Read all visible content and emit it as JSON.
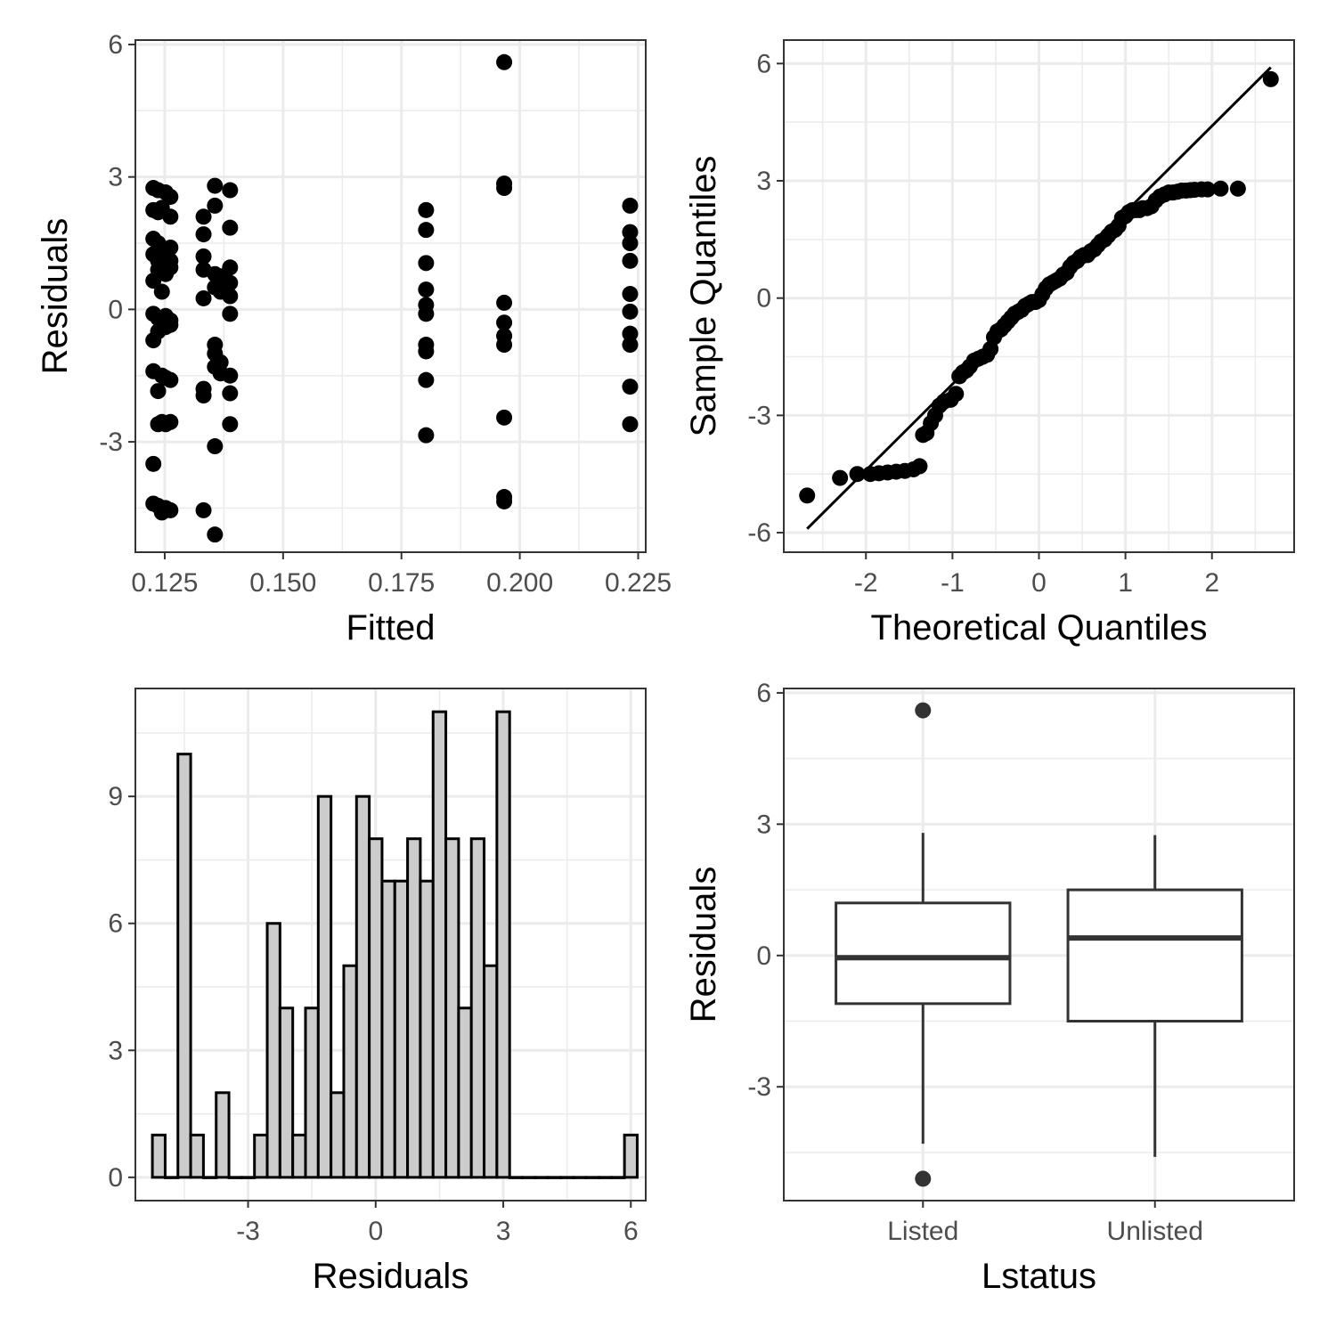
{
  "chart_data": [
    {
      "id": "residuals-vs-fitted",
      "type": "scatter",
      "xlabel": "Fitted",
      "ylabel": "Residuals",
      "xlim": [
        0.1188,
        0.2266
      ],
      "ylim": [
        -5.5,
        6.1
      ],
      "xticks": [
        0.125,
        0.15,
        0.175,
        0.2,
        0.225
      ],
      "xtick_labels": [
        "0.125",
        "0.150",
        "0.175",
        "0.200",
        "0.225"
      ],
      "yticks": [
        -3,
        0,
        3,
        6
      ],
      "ytick_labels": [
        "-3",
        "0",
        "3",
        "6"
      ],
      "grid": true,
      "points": [
        [
          0.1226,
          2.75
        ],
        [
          0.1226,
          2.25
        ],
        [
          0.1226,
          1.6
        ],
        [
          0.1226,
          1.25
        ],
        [
          0.1226,
          0.65
        ],
        [
          0.1226,
          -0.1
        ],
        [
          0.1226,
          -0.7
        ],
        [
          0.1226,
          -1.4
        ],
        [
          0.1226,
          -3.5
        ],
        [
          0.1226,
          -4.4
        ],
        [
          0.1236,
          2.7
        ],
        [
          0.1236,
          2.2
        ],
        [
          0.1236,
          1.5
        ],
        [
          0.1236,
          1.1
        ],
        [
          0.1236,
          0.9
        ],
        [
          0.1236,
          -0.2
        ],
        [
          0.1236,
          -0.5
        ],
        [
          0.1236,
          -1.85
        ],
        [
          0.1236,
          -2.6
        ],
        [
          0.1236,
          -4.45
        ],
        [
          0.1244,
          2.3
        ],
        [
          0.1244,
          1.35
        ],
        [
          0.1244,
          1.0
        ],
        [
          0.1244,
          0.4
        ],
        [
          0.1244,
          -0.3
        ],
        [
          0.1244,
          -1.5
        ],
        [
          0.1244,
          -2.55
        ],
        [
          0.1244,
          -4.6
        ],
        [
          0.1252,
          2.65
        ],
        [
          0.1252,
          1.2
        ],
        [
          0.1252,
          0.8
        ],
        [
          0.1252,
          -0.15
        ],
        [
          0.1252,
          -0.4
        ],
        [
          0.1252,
          -1.55
        ],
        [
          0.1252,
          -2.6
        ],
        [
          0.1252,
          -4.5
        ],
        [
          0.1262,
          2.55
        ],
        [
          0.1262,
          2.1
        ],
        [
          0.1262,
          1.4
        ],
        [
          0.1262,
          1.1
        ],
        [
          0.1262,
          0.95
        ],
        [
          0.1262,
          -0.25
        ],
        [
          0.1262,
          -0.35
        ],
        [
          0.1262,
          -1.6
        ],
        [
          0.1262,
          -2.55
        ],
        [
          0.1262,
          -4.55
        ],
        [
          0.1332,
          2.1
        ],
        [
          0.1332,
          1.7
        ],
        [
          0.1332,
          1.2
        ],
        [
          0.1332,
          0.9
        ],
        [
          0.1332,
          0.25
        ],
        [
          0.1332,
          -1.8
        ],
        [
          0.1332,
          -1.95
        ],
        [
          0.1332,
          -4.55
        ],
        [
          0.1356,
          2.8
        ],
        [
          0.1356,
          2.35
        ],
        [
          0.1356,
          0.8
        ],
        [
          0.1356,
          0.5
        ],
        [
          0.1356,
          -0.8
        ],
        [
          0.1356,
          -1.0
        ],
        [
          0.1356,
          -1.3
        ],
        [
          0.1356,
          -3.1
        ],
        [
          0.1356,
          -5.1
        ],
        [
          0.1368,
          0.75
        ],
        [
          0.1368,
          0.4
        ],
        [
          0.1368,
          -1.2
        ],
        [
          0.1368,
          -1.45
        ],
        [
          0.1388,
          2.7
        ],
        [
          0.1388,
          1.85
        ],
        [
          0.1388,
          0.95
        ],
        [
          0.1388,
          0.6
        ],
        [
          0.1388,
          0.3
        ],
        [
          0.1388,
          -0.1
        ],
        [
          0.1388,
          -1.5
        ],
        [
          0.1388,
          -1.9
        ],
        [
          0.1388,
          -2.6
        ],
        [
          0.1802,
          2.25
        ],
        [
          0.1802,
          1.8
        ],
        [
          0.1802,
          1.05
        ],
        [
          0.1802,
          0.45
        ],
        [
          0.1802,
          0.1
        ],
        [
          0.1802,
          -0.1
        ],
        [
          0.1802,
          -0.8
        ],
        [
          0.1802,
          -0.95
        ],
        [
          0.1802,
          -1.6
        ],
        [
          0.1802,
          -2.85
        ],
        [
          0.1967,
          5.6
        ],
        [
          0.1967,
          2.85
        ],
        [
          0.1967,
          2.75
        ],
        [
          0.1967,
          0.15
        ],
        [
          0.1967,
          -0.3
        ],
        [
          0.1967,
          -0.6
        ],
        [
          0.1967,
          -0.8
        ],
        [
          0.1967,
          -2.45
        ],
        [
          0.1967,
          -4.25
        ],
        [
          0.1967,
          -4.35
        ],
        [
          0.2233,
          2.35
        ],
        [
          0.2233,
          1.75
        ],
        [
          0.2233,
          1.5
        ],
        [
          0.2233,
          1.1
        ],
        [
          0.2233,
          0.35
        ],
        [
          0.2233,
          -0.05
        ],
        [
          0.2233,
          -0.55
        ],
        [
          0.2233,
          -0.8
        ],
        [
          0.2233,
          -1.75
        ],
        [
          0.2233,
          -2.6
        ]
      ]
    },
    {
      "id": "normal-qq",
      "type": "scatter",
      "xlabel": "Theoretical Quantiles",
      "ylabel": "Sample Quantiles",
      "xlim": [
        -2.95,
        2.95
      ],
      "ylim": [
        -6.5,
        6.6
      ],
      "xticks": [
        -2,
        -1,
        0,
        1,
        2
      ],
      "xtick_labels": [
        "-2",
        "-1",
        "0",
        "1",
        "2"
      ],
      "yticks": [
        -6,
        -3,
        0,
        3,
        6
      ],
      "ytick_labels": [
        "-6",
        "-3",
        "0",
        "3",
        "6"
      ],
      "grid": true,
      "reference_line": [
        [
          -2.68,
          -5.9
        ],
        [
          2.68,
          5.9
        ]
      ],
      "points": [
        [
          -2.68,
          -5.05
        ],
        [
          -2.3,
          -4.6
        ],
        [
          -2.1,
          -4.5
        ],
        [
          -1.95,
          -4.5
        ],
        [
          -1.85,
          -4.48
        ],
        [
          -1.75,
          -4.46
        ],
        [
          -1.65,
          -4.44
        ],
        [
          -1.55,
          -4.42
        ],
        [
          -1.45,
          -4.38
        ],
        [
          -1.38,
          -4.3
        ],
        [
          -1.34,
          -3.5
        ],
        [
          -1.3,
          -3.45
        ],
        [
          -1.25,
          -3.2
        ],
        [
          -1.2,
          -3.0
        ],
        [
          -1.15,
          -2.75
        ],
        [
          -1.1,
          -2.65
        ],
        [
          -1.02,
          -2.6
        ],
        [
          -0.96,
          -2.45
        ],
        [
          -0.92,
          -2.0
        ],
        [
          -0.88,
          -1.9
        ],
        [
          -0.84,
          -1.85
        ],
        [
          -0.8,
          -1.75
        ],
        [
          -0.75,
          -1.6
        ],
        [
          -0.7,
          -1.55
        ],
        [
          -0.65,
          -1.5
        ],
        [
          -0.6,
          -1.45
        ],
        [
          -0.56,
          -1.3
        ],
        [
          -0.52,
          -1.0
        ],
        [
          -0.48,
          -0.85
        ],
        [
          -0.44,
          -0.8
        ],
        [
          -0.4,
          -0.7
        ],
        [
          -0.36,
          -0.6
        ],
        [
          -0.32,
          -0.5
        ],
        [
          -0.28,
          -0.4
        ],
        [
          -0.24,
          -0.35
        ],
        [
          -0.2,
          -0.3
        ],
        [
          -0.16,
          -0.2
        ],
        [
          -0.12,
          -0.15
        ],
        [
          -0.08,
          -0.1
        ],
        [
          -0.04,
          -0.1
        ],
        [
          0.0,
          -0.05
        ],
        [
          0.04,
          0.1
        ],
        [
          0.08,
          0.25
        ],
        [
          0.12,
          0.35
        ],
        [
          0.16,
          0.4
        ],
        [
          0.2,
          0.45
        ],
        [
          0.24,
          0.5
        ],
        [
          0.28,
          0.6
        ],
        [
          0.32,
          0.65
        ],
        [
          0.36,
          0.8
        ],
        [
          0.4,
          0.9
        ],
        [
          0.44,
          0.95
        ],
        [
          0.48,
          1.05
        ],
        [
          0.52,
          1.1
        ],
        [
          0.56,
          1.1
        ],
        [
          0.6,
          1.2
        ],
        [
          0.64,
          1.25
        ],
        [
          0.68,
          1.35
        ],
        [
          0.72,
          1.45
        ],
        [
          0.76,
          1.5
        ],
        [
          0.8,
          1.6
        ],
        [
          0.84,
          1.7
        ],
        [
          0.88,
          1.75
        ],
        [
          0.92,
          1.85
        ],
        [
          0.96,
          2.05
        ],
        [
          1.0,
          2.1
        ],
        [
          1.04,
          2.2
        ],
        [
          1.08,
          2.25
        ],
        [
          1.12,
          2.25
        ],
        [
          1.16,
          2.25
        ],
        [
          1.2,
          2.3
        ],
        [
          1.25,
          2.3
        ],
        [
          1.3,
          2.35
        ],
        [
          1.35,
          2.5
        ],
        [
          1.4,
          2.6
        ],
        [
          1.45,
          2.65
        ],
        [
          1.5,
          2.7
        ],
        [
          1.55,
          2.7
        ],
        [
          1.6,
          2.72
        ],
        [
          1.65,
          2.75
        ],
        [
          1.7,
          2.75
        ],
        [
          1.75,
          2.76
        ],
        [
          1.8,
          2.77
        ],
        [
          1.88,
          2.78
        ],
        [
          1.95,
          2.78
        ],
        [
          2.1,
          2.8
        ],
        [
          2.3,
          2.8
        ],
        [
          2.68,
          5.6
        ]
      ]
    },
    {
      "id": "residual-histogram",
      "type": "bar",
      "xlabel": "Residuals",
      "ylabel": "",
      "xlim": [
        -5.65,
        6.35
      ],
      "ylim": [
        -0.55,
        11.55
      ],
      "xticks": [
        -3,
        0,
        3,
        6
      ],
      "xtick_labels": [
        "-3",
        "0",
        "3",
        "6"
      ],
      "yticks": [
        0,
        3,
        6,
        9
      ],
      "ytick_labels": [
        "0",
        "3",
        "6",
        "9"
      ],
      "grid": true,
      "bin_width": 0.3,
      "bin_start": -5.25,
      "counts": [
        1,
        0,
        10,
        1,
        0,
        2,
        0,
        0,
        1,
        6,
        4,
        1,
        4,
        9,
        2,
        5,
        9,
        8,
        7,
        7,
        8,
        7,
        11,
        8,
        4,
        8,
        5,
        11,
        0,
        0,
        0,
        0,
        0,
        0,
        0,
        0,
        0,
        1
      ]
    },
    {
      "id": "residuals-by-lstatus",
      "type": "box",
      "xlabel": "Lstatus",
      "ylabel": "Residuals",
      "ylim": [
        -5.6,
        6.1
      ],
      "yticks": [
        -3,
        0,
        3,
        6
      ],
      "ytick_labels": [
        "-3",
        "0",
        "3",
        "6"
      ],
      "grid": true,
      "categories": [
        "Listed",
        "Unlisted"
      ],
      "boxes": [
        {
          "category": "Listed",
          "whisker_low": -4.3,
          "q1": -1.1,
          "median": -0.05,
          "q3": 1.2,
          "whisker_high": 2.8,
          "outliers": [
            5.6,
            -5.1
          ]
        },
        {
          "category": "Unlisted",
          "whisker_low": -4.6,
          "q1": -1.5,
          "median": 0.4,
          "q3": 1.5,
          "whisker_high": 2.75,
          "outliers": []
        }
      ]
    }
  ]
}
